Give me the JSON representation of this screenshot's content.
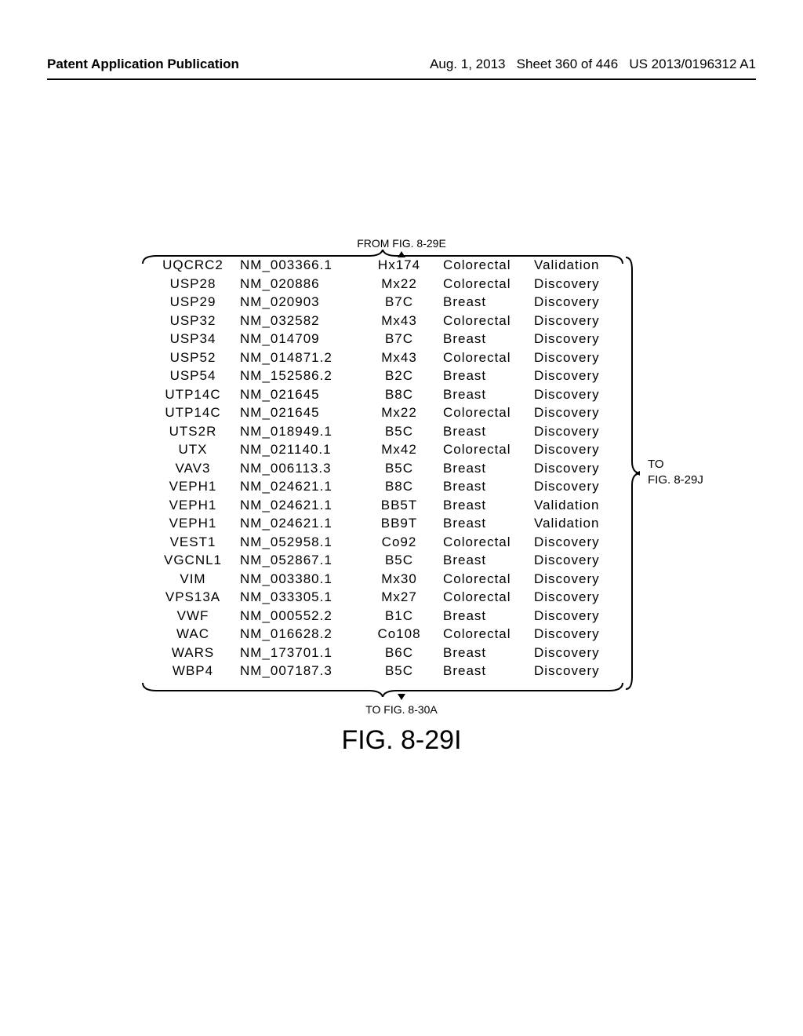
{
  "header": {
    "left": "Patent Application Publication",
    "right_date": "Aug. 1, 2013",
    "right_sheet": "Sheet 360 of 446",
    "right_pub": "US 2013/0196312 A1"
  },
  "from_label": "FROM FIG. 8-29E",
  "to_label": "TO FIG. 8-30A",
  "right_label_1": "TO",
  "right_label_2": "FIG. 8-29J",
  "figure_title": "FIG. 8-29I",
  "font_size_pt": 13,
  "colors": {
    "text": "#000000",
    "background": "#ffffff"
  },
  "table": {
    "columns": [
      "gene",
      "accession",
      "sample",
      "tumor_type",
      "screen"
    ],
    "column_align": [
      "center",
      "left",
      "center",
      "left",
      "left"
    ],
    "rows": [
      [
        "UQCRC2",
        "NM_003366.1",
        "Hx174",
        "Colorectal",
        "Validation"
      ],
      [
        "USP28",
        "NM_020886",
        "Mx22",
        "Colorectal",
        "Discovery"
      ],
      [
        "USP29",
        "NM_020903",
        "B7C",
        "Breast",
        "Discovery"
      ],
      [
        "USP32",
        "NM_032582",
        "Mx43",
        "Colorectal",
        "Discovery"
      ],
      [
        "USP34",
        "NM_014709",
        "B7C",
        "Breast",
        "Discovery"
      ],
      [
        "USP52",
        "NM_014871.2",
        "Mx43",
        "Colorectal",
        "Discovery"
      ],
      [
        "USP54",
        "NM_152586.2",
        "B2C",
        "Breast",
        "Discovery"
      ],
      [
        "UTP14C",
        "NM_021645",
        "B8C",
        "Breast",
        "Discovery"
      ],
      [
        "UTP14C",
        "NM_021645",
        "Mx22",
        "Colorectal",
        "Discovery"
      ],
      [
        "UTS2R",
        "NM_018949.1",
        "B5C",
        "Breast",
        "Discovery"
      ],
      [
        "UTX",
        "NM_021140.1",
        "Mx42",
        "Colorectal",
        "Discovery"
      ],
      [
        "VAV3",
        "NM_006113.3",
        "B5C",
        "Breast",
        "Discovery"
      ],
      [
        "VEPH1",
        "NM_024621.1",
        "B8C",
        "Breast",
        "Discovery"
      ],
      [
        "VEPH1",
        "NM_024621.1",
        "BB5T",
        "Breast",
        "Validation"
      ],
      [
        "VEPH1",
        "NM_024621.1",
        "BB9T",
        "Breast",
        "Validation"
      ],
      [
        "VEST1",
        "NM_052958.1",
        "Co92",
        "Colorectal",
        "Discovery"
      ],
      [
        "VGCNL1",
        "NM_052867.1",
        "B5C",
        "Breast",
        "Discovery"
      ],
      [
        "VIM",
        "NM_003380.1",
        "Mx30",
        "Colorectal",
        "Discovery"
      ],
      [
        "VPS13A",
        "NM_033305.1",
        "Mx27",
        "Colorectal",
        "Discovery"
      ],
      [
        "VWF",
        "NM_000552.2",
        "B1C",
        "Breast",
        "Discovery"
      ],
      [
        "WAC",
        "NM_016628.2",
        "Co108",
        "Colorectal",
        "Discovery"
      ],
      [
        "WARS",
        "NM_173701.1",
        "B6C",
        "Breast",
        "Discovery"
      ],
      [
        "WBP4",
        "NM_007187.3",
        "B5C",
        "Breast",
        "Discovery"
      ]
    ]
  }
}
